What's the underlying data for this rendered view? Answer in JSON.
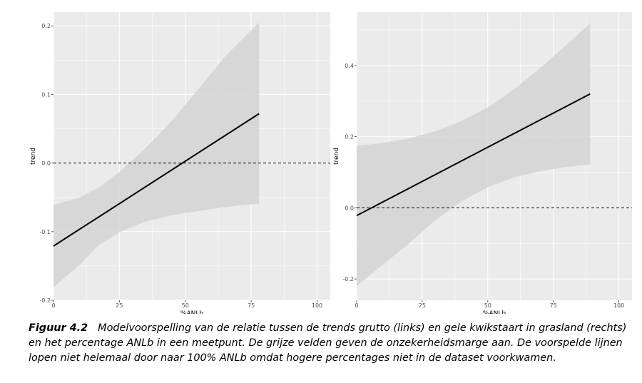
{
  "chart_data": [
    {
      "type": "line",
      "xlabel": "%ANLb",
      "ylabel": "trend",
      "xlim": [
        0,
        105
      ],
      "ylim": [
        -0.2,
        0.22
      ],
      "x_ticks": [
        0,
        25,
        50,
        75,
        100
      ],
      "x_tick_labels": [
        "0",
        "25",
        "50",
        "75",
        "100"
      ],
      "y_ticks": [
        -0.2,
        -0.1,
        0.0,
        0.1,
        0.2
      ],
      "y_tick_labels": [
        "-0.2",
        "-0.1",
        "0.0",
        "0.1",
        "0.2"
      ],
      "series": [
        {
          "x": [
            0,
            78
          ],
          "y": [
            -0.121,
            0.072
          ]
        }
      ],
      "ribbon": {
        "x": [
          0,
          10,
          17,
          25,
          35,
          45,
          55,
          65,
          78
        ],
        "upper": [
          -0.061,
          -0.05,
          -0.036,
          -0.013,
          0.022,
          0.062,
          0.108,
          0.155,
          0.205
        ],
        "lower": [
          -0.181,
          -0.148,
          -0.12,
          -0.101,
          -0.085,
          -0.076,
          -0.07,
          -0.064,
          -0.059
        ]
      },
      "reference_line": {
        "y": 0.0,
        "style": "dashed"
      },
      "grid": true
    },
    {
      "type": "line",
      "xlabel": "%ANLb",
      "ylabel": "trend",
      "xlim": [
        0,
        105
      ],
      "ylim": [
        -0.26,
        0.55
      ],
      "x_ticks": [
        0,
        25,
        50,
        75,
        100
      ],
      "x_tick_labels": [
        "0",
        "25",
        "50",
        "75",
        "100"
      ],
      "y_ticks": [
        -0.2,
        0.0,
        0.2,
        0.4
      ],
      "y_tick_labels": [
        "-0.2",
        "0.0",
        "0.2",
        "0.4"
      ],
      "series": [
        {
          "x": [
            0,
            89
          ],
          "y": [
            -0.022,
            0.32
          ]
        }
      ],
      "ribbon": {
        "x": [
          0,
          10,
          20,
          30,
          40,
          50,
          60,
          70,
          80,
          89
        ],
        "upper": [
          0.174,
          0.182,
          0.195,
          0.215,
          0.244,
          0.282,
          0.333,
          0.393,
          0.458,
          0.518
        ],
        "lower": [
          -0.22,
          -0.16,
          -0.1,
          -0.035,
          0.018,
          0.058,
          0.085,
          0.103,
          0.115,
          0.122
        ]
      },
      "reference_line": {
        "y": 0.0,
        "style": "dashed"
      },
      "grid": true
    }
  ],
  "caption": {
    "label": "Figuur 4.2",
    "text": "Modelvoorspelling van de relatie tussen de trends grutto (links) en gele kwikstaart in grasland (rechts) en het percentage ANLb in een meetpunt. De grijze velden geven de onzekerheidsmarge aan. De voorspelde lijnen lopen niet helemaal door naar 100% ANLb omdat hogere percentages niet in de dataset voorkwamen."
  },
  "colors": {
    "panel_bg": "#ebebeb",
    "grid": "#ffffff",
    "ribbon": "#d3d3d3",
    "line": "#000000",
    "tick_text": "#4d4d4d"
  }
}
